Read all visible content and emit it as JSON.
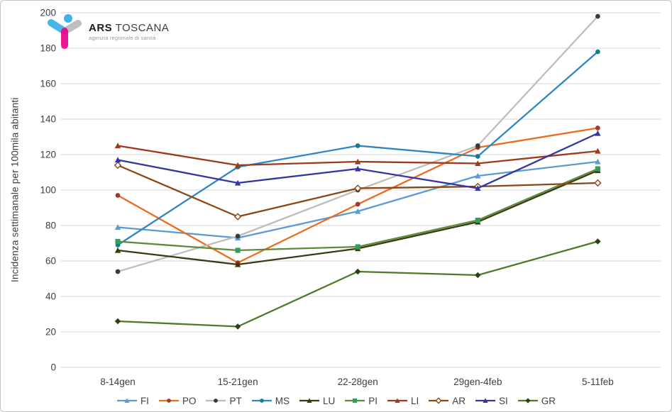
{
  "logo": {
    "brand_bold": "ARS",
    "brand_rest": " TOSCANA",
    "tagline": "agenzia regionale di sanità"
  },
  "chart_data": {
    "type": "line",
    "title": "",
    "xlabel": "",
    "ylabel": "Incidenza settimanale per 100mila abitanti",
    "ylim": [
      0,
      200
    ],
    "ytick_step": 20,
    "grid": true,
    "legend_position": "bottom",
    "categories": [
      "8-14gen",
      "15-21gen",
      "22-28gen",
      "29gen-4feb",
      "5-11feb"
    ],
    "series": [
      {
        "name": "FI",
        "values": [
          79,
          73,
          88,
          108,
          116
        ],
        "color": "#5B9BD5",
        "marker": "triangle",
        "marker_color": "#5B9BD5"
      },
      {
        "name": "PO",
        "values": [
          97,
          59,
          92,
          124,
          135
        ],
        "color": "#ED6B1F",
        "marker": "circle",
        "marker_color": "#A8352C"
      },
      {
        "name": "PT",
        "values": [
          54,
          74,
          100,
          125,
          198
        ],
        "color": "#BDBDBD",
        "marker": "circle",
        "marker_color": "#3A3A3A"
      },
      {
        "name": "MS",
        "values": [
          69,
          113,
          125,
          119,
          178
        ],
        "color": "#2E86C5",
        "marker": "circle",
        "marker_color": "#0F7E8C"
      },
      {
        "name": "LU",
        "values": [
          66,
          58,
          67,
          82,
          111
        ],
        "color": "#3A3912",
        "marker": "triangle",
        "marker_color": "#3A3912"
      },
      {
        "name": "PI",
        "values": [
          71,
          66,
          68,
          83,
          112
        ],
        "color": "#5C8B3C",
        "marker": "square",
        "marker_color": "#2EA05A"
      },
      {
        "name": "LI",
        "values": [
          125,
          114,
          116,
          115,
          122
        ],
        "color": "#9E3A19",
        "marker": "triangle",
        "marker_color": "#9E3A19"
      },
      {
        "name": "AR",
        "values": [
          114,
          85,
          101,
          102,
          104
        ],
        "color": "#8C4613",
        "marker": "diamond-open",
        "marker_color": "#8C4613"
      },
      {
        "name": "SI",
        "values": [
          117,
          104,
          112,
          101,
          132
        ],
        "color": "#3434A4",
        "marker": "triangle",
        "marker_color": "#3434A4"
      },
      {
        "name": "GR",
        "values": [
          26,
          23,
          54,
          52,
          71
        ],
        "color": "#4E7A27",
        "marker": "diamond",
        "marker_color": "#2C3E1A"
      }
    ]
  }
}
